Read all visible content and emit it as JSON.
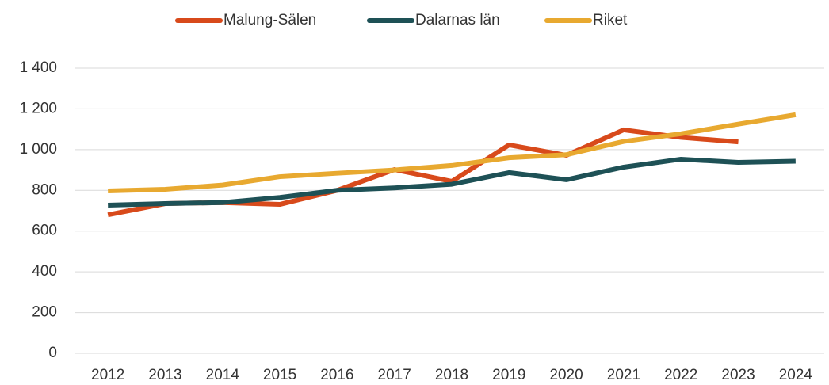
{
  "chart_data": {
    "type": "line",
    "categories": [
      "2012",
      "2013",
      "2014",
      "2015",
      "2016",
      "2017",
      "2018",
      "2019",
      "2020",
      "2021",
      "2022",
      "2023",
      "2024"
    ],
    "series": [
      {
        "name": "Malung-Sälen",
        "color": "#d84a1b",
        "values": [
          680,
          735,
          740,
          731,
          800,
          902,
          844,
          1023,
          972,
          1097,
          1060,
          1038,
          null
        ]
      },
      {
        "name": "Dalarnas län",
        "color": "#1e5156",
        "values": [
          727,
          735,
          740,
          765,
          800,
          812,
          830,
          887,
          852,
          914,
          953,
          937,
          943
        ]
      },
      {
        "name": "Riket",
        "color": "#e8a930",
        "values": [
          797,
          805,
          826,
          867,
          884,
          900,
          922,
          960,
          975,
          1040,
          1078,
          1125,
          1171
        ]
      }
    ],
    "ylim": [
      0,
      1400
    ],
    "yticks": [
      0,
      200,
      400,
      600,
      800,
      {
        "value": 1000,
        "label": "1 000"
      },
      {
        "value": 1200,
        "label": "1 200"
      },
      {
        "value": 1400,
        "label": "1 400"
      }
    ],
    "grid": true,
    "legend": "top"
  }
}
